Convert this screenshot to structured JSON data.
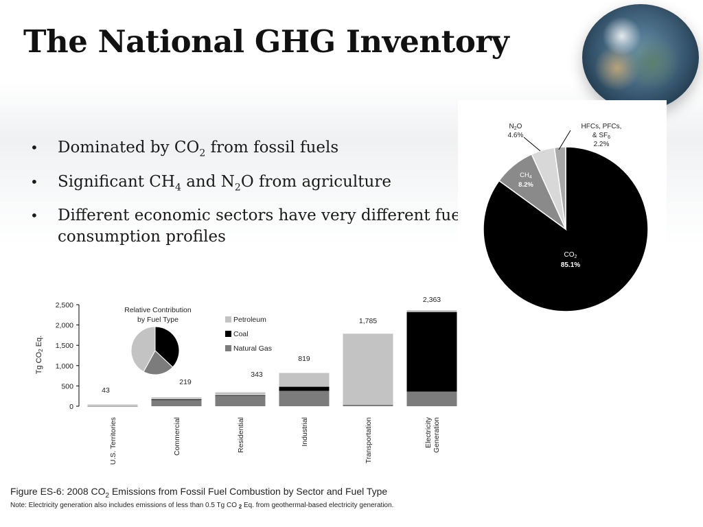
{
  "slide": {
    "title": "The National GHG Inventory",
    "bullets": [
      {
        "pre": "Dominated by CO",
        "sub1": "2",
        "mid": " from fossil fuels",
        "sub2": "",
        "post": ""
      },
      {
        "pre": "Significant CH",
        "sub1": "4",
        "mid": " and N",
        "sub2": "2",
        "post": "O from agriculture"
      },
      {
        "pre": "Different economic sectors have very different fuel consumption profiles",
        "sub1": "",
        "mid": "",
        "sub2": "",
        "post": ""
      }
    ],
    "bullet_glyph": "•"
  },
  "figure": {
    "caption_pre": "Figure ES-6:  2008 CO",
    "caption_sub": "2",
    "caption_post": " Emissions from Fossil Fuel Combustion by Sector and Fuel Type",
    "note_pre": "Note:  Electricity generation also includes emissions of less than 0.5 Tg CO ",
    "note_sub": "2",
    "note_post": " Eq. from geothermal-based electricity generation."
  },
  "chart_data": [
    {
      "type": "pie",
      "slices": [
        {
          "label": "CO",
          "sub": "2",
          "value_label": "85.1%",
          "value": 85.1,
          "color": "#000000"
        },
        {
          "label": "CH",
          "sub": "4",
          "value_label": "8.2%",
          "value": 8.2,
          "color": "#8a8a8a"
        },
        {
          "label": "N",
          "sub": "2",
          "label_post": "O",
          "value_label": "4.6%",
          "value": 4.6,
          "color": "#d8d8d8"
        },
        {
          "label": "HFCs, PFCs,",
          "label2": "& SF",
          "sub": "6",
          "value_label": "2.2%",
          "value": 2.2,
          "color": "#a8a8a8"
        }
      ]
    },
    {
      "type": "bar",
      "stacked": true,
      "ylabel": "Tg CO2 Eq.",
      "ylabel_pre": "Tg CO",
      "ylabel_sub": "2",
      "ylabel_post": " Eq.",
      "ylim": [
        0,
        2500
      ],
      "yticks": [
        0,
        500,
        1000,
        1500,
        2000,
        2500
      ],
      "ytick_labels": [
        "0",
        "500",
        "1,000",
        "1,500",
        "2,000",
        "2,500"
      ],
      "categories": [
        "U.S. Territories",
        "Commercial",
        "Residential",
        "Industrial",
        "Transportation",
        "Electricity Generation"
      ],
      "category_lines": [
        [
          "U.S. Territories"
        ],
        [
          "Commercial"
        ],
        [
          "Residential"
        ],
        [
          "Industrial"
        ],
        [
          "Transportation"
        ],
        [
          "Electricity",
          "Generation"
        ]
      ],
      "totals": [
        43,
        219,
        343,
        819,
        1785,
        2363
      ],
      "total_labels": [
        "43",
        "219",
        "343",
        "819",
        "1,785",
        "2,363"
      ],
      "series": [
        {
          "name": "Natural Gas",
          "color": "#7c7c7c",
          "values": [
            3,
            163,
            266,
            380,
            38,
            360
          ]
        },
        {
          "name": "Coal",
          "color": "#000000",
          "values": [
            0,
            6,
            1,
            100,
            0,
            1960
          ]
        },
        {
          "name": "Petroleum",
          "color": "#c3c3c3",
          "values": [
            40,
            50,
            76,
            339,
            1747,
            43
          ]
        }
      ],
      "legend_order": [
        "Petroleum",
        "Coal",
        "Natural Gas"
      ],
      "inset": {
        "title_line1": "Relative Contribution",
        "title_line2": "by Fuel Type",
        "slices": [
          {
            "name": "Coal",
            "value": 37,
            "color": "#000000"
          },
          {
            "name": "Natural Gas",
            "value": 21,
            "color": "#7c7c7c"
          },
          {
            "name": "Petroleum",
            "value": 42,
            "color": "#c3c3c3"
          }
        ]
      }
    }
  ]
}
